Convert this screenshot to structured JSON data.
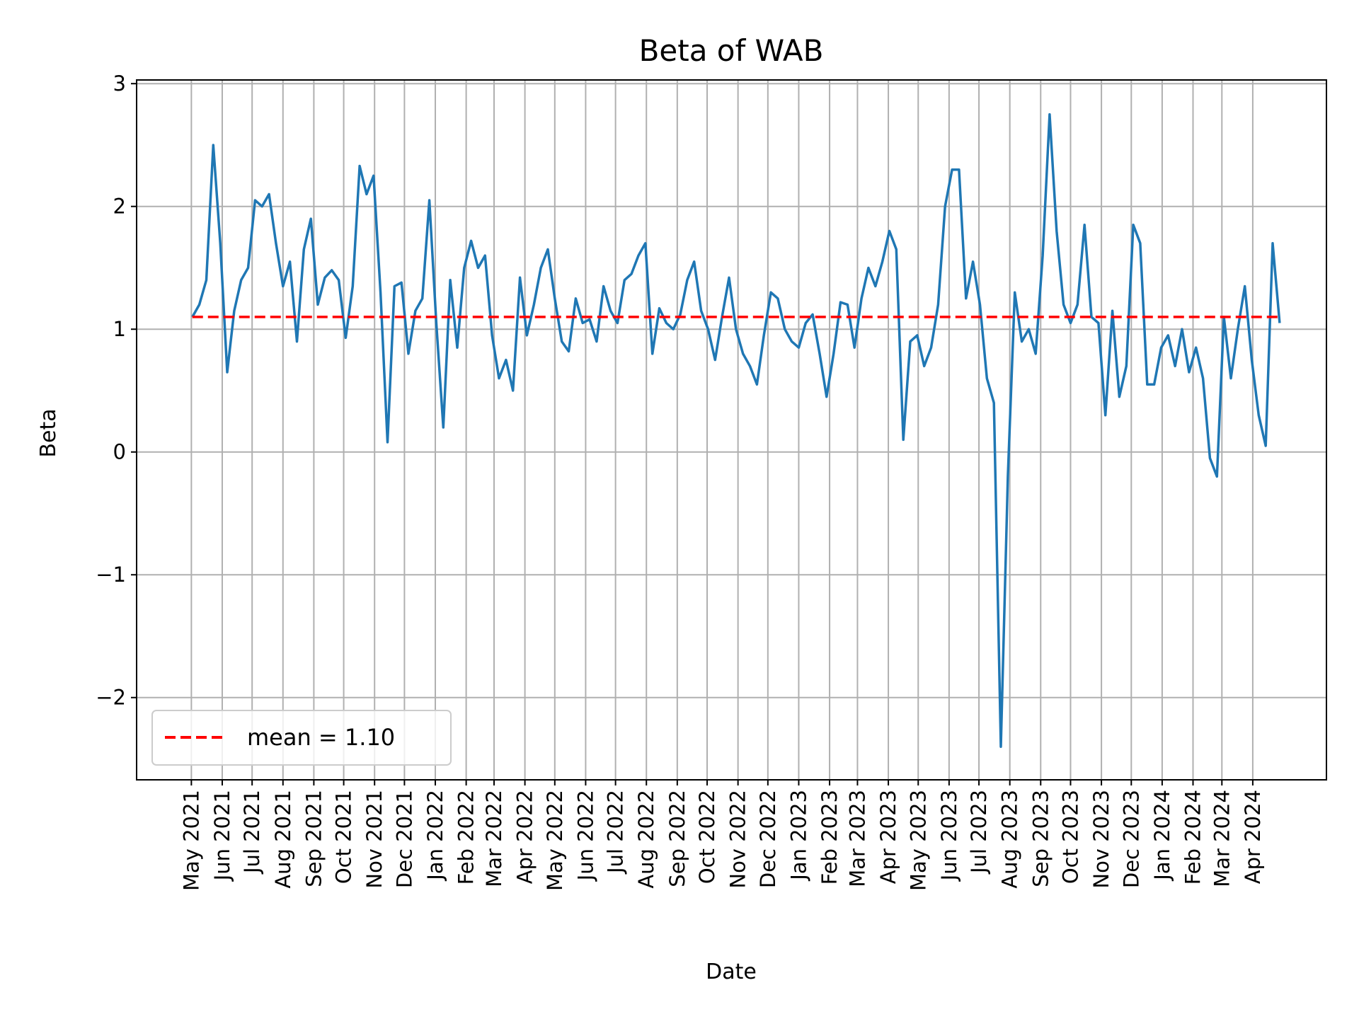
{
  "chart_data": {
    "type": "line",
    "title": "Beta of WAB",
    "xlabel": "Date",
    "ylabel": "Beta",
    "xlim": [
      "2021-03-07",
      "2024-06-14"
    ],
    "ylim": [
      -2.67,
      3.03
    ],
    "grid": true,
    "legend_position": "lower-left",
    "yticks": [
      3,
      2,
      1,
      0,
      -1,
      -2
    ],
    "ytick_labels": [
      "3",
      "2",
      "1",
      "0",
      "−1",
      "−2"
    ],
    "xtick_labels": [
      "May 2021",
      "Jun 2021",
      "Jul 2021",
      "Aug 2021",
      "Sep 2021",
      "Oct 2021",
      "Nov 2021",
      "Dec 2021",
      "Jan 2022",
      "Feb 2022",
      "Mar 2022",
      "Apr 2022",
      "May 2022",
      "Jun 2022",
      "Jul 2022",
      "Aug 2022",
      "Sep 2022",
      "Oct 2022",
      "Nov 2022",
      "Dec 2022",
      "Jan 2023",
      "Feb 2023",
      "Mar 2023",
      "Apr 2023",
      "May 2023",
      "Jun 2023",
      "Jul 2023",
      "Aug 2023",
      "Sep 2023",
      "Oct 2023",
      "Nov 2023",
      "Dec 2023",
      "Jan 2024",
      "Feb 2024",
      "Mar 2024",
      "Apr 2024"
    ],
    "colors": {
      "series": "#1f77b4",
      "mean": "#ff0000",
      "grid": "#b0b0b0"
    },
    "mean": {
      "value": 1.1,
      "label": "mean = 1.10"
    },
    "x": [
      "2021-05-02",
      "2021-05-09",
      "2021-05-16",
      "2021-05-23",
      "2021-05-30",
      "2021-06-06",
      "2021-06-13",
      "2021-06-20",
      "2021-06-27",
      "2021-07-04",
      "2021-07-11",
      "2021-07-18",
      "2021-07-25",
      "2021-08-01",
      "2021-08-08",
      "2021-08-15",
      "2021-08-22",
      "2021-08-29",
      "2021-09-05",
      "2021-09-12",
      "2021-09-19",
      "2021-09-26",
      "2021-10-03",
      "2021-10-10",
      "2021-10-17",
      "2021-10-24",
      "2021-10-31",
      "2021-11-07",
      "2021-11-14",
      "2021-11-21",
      "2021-11-28",
      "2021-12-05",
      "2021-12-12",
      "2021-12-19",
      "2021-12-26",
      "2022-01-02",
      "2022-01-09",
      "2022-01-16",
      "2022-01-23",
      "2022-01-30",
      "2022-02-06",
      "2022-02-13",
      "2022-02-20",
      "2022-02-27",
      "2022-03-06",
      "2022-03-13",
      "2022-03-20",
      "2022-03-27",
      "2022-04-03",
      "2022-04-10",
      "2022-04-17",
      "2022-04-24",
      "2022-05-01",
      "2022-05-08",
      "2022-05-15",
      "2022-05-22",
      "2022-05-29",
      "2022-06-05",
      "2022-06-12",
      "2022-06-19",
      "2022-06-26",
      "2022-07-03",
      "2022-07-10",
      "2022-07-17",
      "2022-07-24",
      "2022-07-31",
      "2022-08-07",
      "2022-08-14",
      "2022-08-21",
      "2022-08-28",
      "2022-09-04",
      "2022-09-11",
      "2022-09-18",
      "2022-09-25",
      "2022-10-02",
      "2022-10-09",
      "2022-10-16",
      "2022-10-23",
      "2022-10-30",
      "2022-11-06",
      "2022-11-13",
      "2022-11-20",
      "2022-11-27",
      "2022-12-04",
      "2022-12-11",
      "2022-12-18",
      "2022-12-25",
      "2023-01-01",
      "2023-01-08",
      "2023-01-15",
      "2023-01-22",
      "2023-01-29",
      "2023-02-05",
      "2023-02-12",
      "2023-02-19",
      "2023-02-26",
      "2023-03-05",
      "2023-03-12",
      "2023-03-19",
      "2023-03-26",
      "2023-04-02",
      "2023-04-09",
      "2023-04-16",
      "2023-04-23",
      "2023-04-30",
      "2023-05-07",
      "2023-05-14",
      "2023-05-21",
      "2023-05-28",
      "2023-06-04",
      "2023-06-11",
      "2023-06-18",
      "2023-06-25",
      "2023-07-02",
      "2023-07-09",
      "2023-07-16",
      "2023-07-23",
      "2023-07-30",
      "2023-08-06",
      "2023-08-13",
      "2023-08-20",
      "2023-08-27",
      "2023-09-03",
      "2023-09-10",
      "2023-09-17",
      "2023-09-24",
      "2023-10-01",
      "2023-10-08",
      "2023-10-15",
      "2023-10-22",
      "2023-10-29",
      "2023-11-05",
      "2023-11-12",
      "2023-11-19",
      "2023-11-26",
      "2023-12-03",
      "2023-12-10",
      "2023-12-17",
      "2023-12-24",
      "2023-12-31",
      "2024-01-07",
      "2024-01-14",
      "2024-01-21",
      "2024-01-28",
      "2024-02-04",
      "2024-02-11",
      "2024-02-18",
      "2024-02-25",
      "2024-03-03",
      "2024-03-10",
      "2024-03-17",
      "2024-03-24",
      "2024-03-31",
      "2024-04-07",
      "2024-04-14",
      "2024-04-21",
      "2024-04-28"
    ],
    "series": [
      {
        "values": [
          1.1,
          1.2,
          1.4,
          2.5,
          1.7,
          0.65,
          1.15,
          1.4,
          1.5,
          2.05,
          2.0,
          2.1,
          1.7,
          1.35,
          1.55,
          0.9,
          1.65,
          1.9,
          1.2,
          1.42,
          1.48,
          1.4,
          0.93,
          1.35,
          2.33,
          2.1,
          2.25,
          1.3,
          0.08,
          1.35,
          1.38,
          0.8,
          1.15,
          1.25,
          2.05,
          1.05,
          0.2,
          1.4,
          0.85,
          1.5,
          1.72,
          1.5,
          1.6,
          0.95,
          0.6,
          0.75,
          0.5,
          1.42,
          0.95,
          1.2,
          1.5,
          1.65,
          1.25,
          0.9,
          0.82,
          1.25,
          1.05,
          1.08,
          0.9,
          1.35,
          1.15,
          1.05,
          1.4,
          1.45,
          1.6,
          1.7,
          0.8,
          1.17,
          1.05,
          1.0,
          1.12,
          1.4,
          1.55,
          1.15,
          1.0,
          0.75,
          1.1,
          1.42,
          1.0,
          0.8,
          0.7,
          0.55,
          0.95,
          1.3,
          1.25,
          1.0,
          0.9,
          0.85,
          1.05,
          1.12,
          0.8,
          0.45,
          0.8,
          1.22,
          1.2,
          0.85,
          1.25,
          1.5,
          1.35,
          1.55,
          1.8,
          1.65,
          0.1,
          0.9,
          0.95,
          0.7,
          0.85,
          1.2,
          2.0,
          2.3,
          2.3,
          1.25,
          1.55,
          1.2,
          0.6,
          0.4,
          -2.4,
          -0.2,
          1.3,
          0.9,
          1.0,
          0.8,
          1.6,
          2.75,
          1.8,
          1.2,
          1.05,
          1.2,
          1.85,
          1.1,
          1.05,
          0.3,
          1.15,
          0.45,
          0.7,
          1.85,
          1.7,
          0.55,
          0.55,
          0.85,
          0.95,
          0.7,
          1.0,
          0.65,
          0.85,
          0.6,
          -0.05,
          -0.2,
          1.1,
          0.6,
          1.0,
          1.35,
          0.75,
          0.3,
          0.05,
          1.7,
          1.05
        ]
      }
    ]
  }
}
